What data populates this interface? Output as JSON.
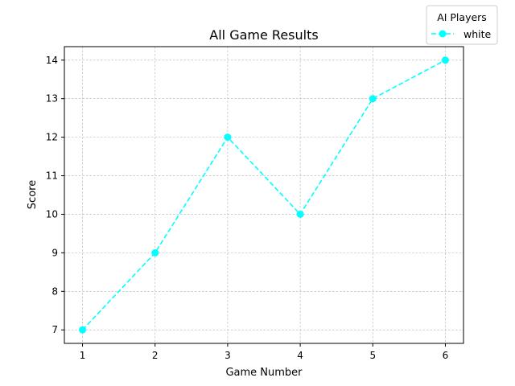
{
  "chart_data": {
    "type": "line",
    "title": "All Game Results",
    "xlabel": "Game Number",
    "ylabel": "Score",
    "x": [
      1,
      2,
      3,
      4,
      5,
      6
    ],
    "xticks": [
      "1",
      "2",
      "3",
      "4",
      "5",
      "6"
    ],
    "yticks": [
      "7",
      "8",
      "9",
      "10",
      "11",
      "12",
      "13",
      "14"
    ],
    "xlim": [
      0.75,
      6.25
    ],
    "ylim": [
      6.65,
      14.35
    ],
    "grid": true,
    "series": [
      {
        "name": "white",
        "values": [
          7,
          9,
          12,
          10,
          13,
          14
        ],
        "color": "#00ffff",
        "linestyle": "dashed",
        "marker": "circle"
      }
    ],
    "legend": {
      "title": "AI Players",
      "placement": "top-right (outside plot)"
    }
  }
}
